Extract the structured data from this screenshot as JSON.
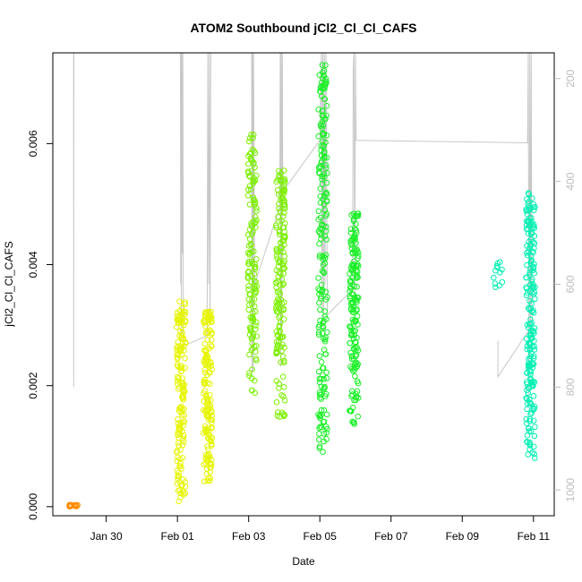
{
  "chart_data": {
    "type": "scatter",
    "title": "ATOM2 Southbound jCl2_Cl_Cl_CAFS",
    "xlabel": "Date",
    "ylabel": "jCl2_Cl_Cl_CAFS",
    "x_axis": {
      "kind": "date",
      "range": [
        "2016-01-28T12:00",
        "2016-02-11T14:00"
      ],
      "ticks": [
        {
          "value": "2016-01-30",
          "label": "Jan 30"
        },
        {
          "value": "2016-02-01",
          "label": "Feb 01"
        },
        {
          "value": "2016-02-03",
          "label": "Feb 03"
        },
        {
          "value": "2016-02-05",
          "label": "Feb 05"
        },
        {
          "value": "2016-02-07",
          "label": "Feb 07"
        },
        {
          "value": "2016-02-09",
          "label": "Feb 09"
        },
        {
          "value": "2016-02-11",
          "label": "Feb 11"
        }
      ]
    },
    "y_axis": {
      "range": [
        -0.00015,
        0.0075
      ],
      "ticks": [
        {
          "value": 0,
          "label": "0.000"
        },
        {
          "value": 0.002,
          "label": "0.002"
        },
        {
          "value": 0.004,
          "label": "0.004"
        },
        {
          "value": 0.006,
          "label": "0.006"
        }
      ]
    },
    "y2_axis": {
      "side": "right",
      "reversed": true,
      "color": "#bdbdbd",
      "range": [
        1050,
        150
      ],
      "ticks": [
        {
          "value": 200,
          "label": "200"
        },
        {
          "value": 400,
          "label": "400"
        },
        {
          "value": 600,
          "label": "600"
        },
        {
          "value": 800,
          "label": "800"
        },
        {
          "value": 1000,
          "label": "1000"
        }
      ]
    },
    "grid": false,
    "legend": "none",
    "series": [
      {
        "color": "#ff8c00",
        "flights": [
          {
            "date": "2016-01-29T02:00",
            "n": 14,
            "ymin": 0.0,
            "ymax": 3e-05
          }
        ]
      },
      {
        "color": "#e6f500",
        "flights": [
          {
            "date": "2016-02-01T02:30",
            "n": 160,
            "ymin": 5e-05,
            "ymax": 0.0034
          },
          {
            "date": "2016-02-01T20:30",
            "n": 160,
            "ymin": 0.0004,
            "ymax": 0.00325
          }
        ]
      },
      {
        "color": "#7cf000",
        "flights": [
          {
            "date": "2016-02-03T02:30",
            "n": 140,
            "ymin": 0.00185,
            "ymax": 0.0062
          },
          {
            "date": "2016-02-03T21:30",
            "n": 160,
            "ymin": 0.00135,
            "ymax": 0.0056
          }
        ]
      },
      {
        "color": "#19f025",
        "flights": [
          {
            "date": "2016-02-05T02:00",
            "n": 200,
            "ymin": 0.00085,
            "ymax": 0.0073
          },
          {
            "date": "2016-02-05T23:00",
            "n": 160,
            "ymin": 0.00135,
            "ymax": 0.0049
          }
        ]
      },
      {
        "color": "#00f0b4",
        "flights": [
          {
            "date": "2016-02-10T00:00",
            "n": 12,
            "ymin": 0.0036,
            "ymax": 0.0041
          },
          {
            "date": "2016-02-10T22:00",
            "n": 200,
            "ymin": 0.00075,
            "ymax": 0.0052
          }
        ]
      }
    ],
    "pressure_track": {
      "color": "#c8c8c8",
      "points": [
        {
          "date": "2016-01-29T02:00",
          "p": 150
        },
        {
          "date": "2016-01-29T02:05",
          "p": 800
        },
        {
          "date": "2016-01-29T02:10",
          "p": 150
        },
        {
          "date": "2016-02-01T02:00",
          "p": 150
        },
        {
          "date": "2016-02-01T02:10",
          "p": 600
        },
        {
          "date": "2016-02-01T02:20",
          "p": 150
        },
        {
          "date": "2016-02-01T02:40",
          "p": 700
        },
        {
          "date": "2016-02-01T03:00",
          "p": 150
        },
        {
          "date": "2016-02-01T03:20",
          "p": 540
        },
        {
          "date": "2016-02-01T03:40",
          "p": 150
        },
        {
          "date": "2016-02-01T04:00",
          "p": 720
        },
        {
          "date": "2016-02-01T20:00",
          "p": 700
        },
        {
          "date": "2016-02-01T20:30",
          "p": 150
        },
        {
          "date": "2016-02-01T21:00",
          "p": 600
        },
        {
          "date": "2016-02-01T21:30",
          "p": 150
        },
        {
          "date": "2016-02-01T22:00",
          "p": 680
        },
        {
          "date": "2016-02-01T22:30",
          "p": 150
        },
        {
          "date": "2016-02-03T02:00",
          "p": 150
        },
        {
          "date": "2016-02-03T02:20",
          "p": 770
        },
        {
          "date": "2016-02-03T02:40",
          "p": 150
        },
        {
          "date": "2016-02-03T03:00",
          "p": 770
        },
        {
          "date": "2016-02-03T03:20",
          "p": 150
        },
        {
          "date": "2016-02-03T04:00",
          "p": 600
        },
        {
          "date": "2016-02-03T21:00",
          "p": 450
        },
        {
          "date": "2016-02-03T21:20",
          "p": 150
        },
        {
          "date": "2016-02-03T21:40",
          "p": 760
        },
        {
          "date": "2016-02-03T22:00",
          "p": 150
        },
        {
          "date": "2016-02-03T22:20",
          "p": 680
        },
        {
          "date": "2016-02-03T22:40",
          "p": 150
        },
        {
          "date": "2016-02-03T23:00",
          "p": 420
        },
        {
          "date": "2016-02-05T00:00",
          "p": 320
        },
        {
          "date": "2016-02-05T01:00",
          "p": 150
        },
        {
          "date": "2016-02-05T01:30",
          "p": 650
        },
        {
          "date": "2016-02-05T02:00",
          "p": 150
        },
        {
          "date": "2016-02-05T02:30",
          "p": 690
        },
        {
          "date": "2016-02-05T03:00",
          "p": 150
        },
        {
          "date": "2016-02-05T03:30",
          "p": 600
        },
        {
          "date": "2016-02-05T04:00",
          "p": 150
        },
        {
          "date": "2016-02-05T04:30",
          "p": 320
        },
        {
          "date": "2016-02-05T05:00",
          "p": 660
        },
        {
          "date": "2016-02-05T22:00",
          "p": 610
        },
        {
          "date": "2016-02-05T22:30",
          "p": 180
        },
        {
          "date": "2016-02-05T23:00",
          "p": 150
        },
        {
          "date": "2016-02-05T23:30",
          "p": 650
        },
        {
          "date": "2016-02-06T00:00",
          "p": 150
        },
        {
          "date": "2016-02-06T00:30",
          "p": 320
        },
        {
          "date": "2016-02-10T20:00",
          "p": 325
        },
        {
          "date": "2016-02-10T20:30",
          "p": 150
        },
        {
          "date": "2016-02-10T21:00",
          "p": 820
        },
        {
          "date": "2016-02-10T21:30",
          "p": 150
        },
        {
          "date": "2016-02-10T22:00",
          "p": 700
        },
        {
          "date": "2016-02-10T22:30",
          "p": 150
        },
        {
          "date": "2016-02-10T23:00",
          "p": 680
        },
        {
          "date": "2016-02-10T00:00",
          "p": 780
        },
        {
          "date": "2016-02-10T00:05",
          "p": 710
        }
      ]
    }
  }
}
